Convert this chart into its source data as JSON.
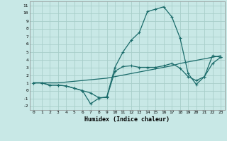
{
  "background_color": "#c8e8e6",
  "grid_color": "#a8ceca",
  "line_color": "#1a6b6a",
  "line1_x": [
    0,
    1,
    2,
    3,
    4,
    5,
    6,
    7,
    8,
    9,
    10,
    11,
    12,
    13,
    14,
    15,
    16,
    17,
    18,
    19,
    20,
    21,
    22,
    23
  ],
  "line1_y": [
    1,
    1,
    1.0,
    1.0,
    1.1,
    1.2,
    1.3,
    1.4,
    1.5,
    1.6,
    1.8,
    2.0,
    2.2,
    2.4,
    2.6,
    2.8,
    3.0,
    3.2,
    3.5,
    3.7,
    3.9,
    4.1,
    4.3,
    4.5
  ],
  "line2_x": [
    0,
    1,
    2,
    3,
    4,
    5,
    6,
    7,
    8,
    9,
    10,
    11,
    12,
    13,
    14,
    15,
    16,
    17,
    18,
    19,
    20,
    21,
    22,
    23
  ],
  "line2_y": [
    1,
    1,
    0.7,
    0.7,
    0.6,
    0.3,
    0.0,
    -1.7,
    -1.0,
    -0.8,
    3.0,
    5.0,
    6.5,
    7.5,
    10.2,
    10.5,
    10.8,
    9.5,
    6.8,
    2.2,
    0.8,
    1.8,
    4.5,
    4.3
  ],
  "line3_x": [
    0,
    1,
    2,
    3,
    4,
    5,
    6,
    7,
    8,
    9,
    10,
    11,
    12,
    13,
    14,
    15,
    16,
    17,
    18,
    19,
    20,
    21,
    22,
    23
  ],
  "line3_y": [
    1,
    1,
    0.7,
    0.7,
    0.6,
    0.3,
    0.0,
    -0.3,
    -0.9,
    -0.9,
    2.5,
    3.1,
    3.2,
    3.0,
    3.0,
    3.0,
    3.2,
    3.5,
    2.9,
    1.8,
    1.3,
    1.8,
    3.5,
    4.3
  ],
  "xlim": [
    -0.5,
    23.5
  ],
  "ylim": [
    -2.5,
    11.5
  ],
  "yticks": [
    -2,
    -1,
    0,
    1,
    2,
    3,
    4,
    5,
    6,
    7,
    8,
    9,
    10,
    11
  ],
  "xticks": [
    0,
    1,
    2,
    3,
    4,
    5,
    6,
    7,
    8,
    9,
    10,
    11,
    12,
    13,
    14,
    15,
    16,
    17,
    18,
    19,
    20,
    21,
    22,
    23
  ],
  "xlabel": "Humidex (Indice chaleur)",
  "marker": "+"
}
